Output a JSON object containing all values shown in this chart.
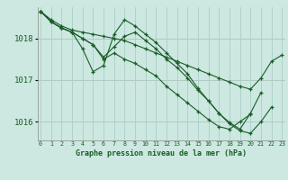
{
  "title": "Graphe pression niveau de la mer (hPa)",
  "bg_color": "#cce8e0",
  "grid_color": "#aacfc8",
  "line_color": "#1a5c28",
  "x_labels": [
    "0",
    "1",
    "2",
    "3",
    "4",
    "5",
    "6",
    "7",
    "8",
    "9",
    "10",
    "11",
    "12",
    "13",
    "14",
    "15",
    "16",
    "17",
    "18",
    "19",
    "20",
    "21",
    "22",
    "23"
  ],
  "ylim": [
    1015.55,
    1018.75
  ],
  "yticks": [
    1016,
    1017,
    1018
  ],
  "series": [
    [
      1018.65,
      1018.45,
      1018.3,
      1018.2,
      1018.15,
      1018.1,
      1018.05,
      1018.0,
      1017.95,
      1017.85,
      1017.75,
      1017.65,
      1017.55,
      1017.45,
      1017.35,
      1017.25,
      1017.15,
      1017.05,
      1016.95,
      1016.85,
      1016.78,
      1017.05,
      1017.45,
      1017.6
    ],
    [
      1018.65,
      1018.4,
      1018.25,
      1018.15,
      1017.75,
      1017.2,
      1017.35,
      1018.1,
      1018.45,
      1018.3,
      1018.1,
      1017.9,
      1017.65,
      1017.4,
      1017.15,
      1016.8,
      1016.5,
      1016.2,
      1015.95,
      1015.78,
      1015.72,
      1016.0,
      1016.35,
      null
    ],
    [
      1018.65,
      1018.4,
      1018.25,
      1018.15,
      1018.0,
      1017.85,
      1017.55,
      1017.8,
      1018.05,
      1018.15,
      1017.95,
      1017.75,
      1017.5,
      1017.3,
      1017.05,
      1016.75,
      1016.5,
      1016.2,
      1015.98,
      1015.82,
      1016.2,
      1016.7,
      null,
      null
    ],
    [
      1018.65,
      1018.4,
      1018.25,
      1018.15,
      1018.0,
      1017.85,
      1017.5,
      1017.65,
      1017.5,
      1017.4,
      1017.25,
      1017.1,
      1016.85,
      1016.65,
      1016.45,
      1016.25,
      1016.05,
      1015.88,
      1015.82,
      1016.0,
      1016.18,
      null,
      null,
      null
    ]
  ]
}
